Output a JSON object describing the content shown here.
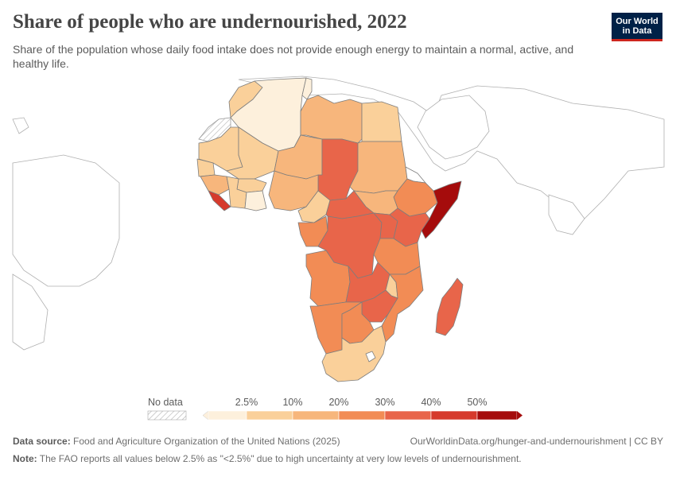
{
  "header": {
    "title": "Share of people who are undernourished, 2022",
    "subtitle": "Share of the population whose daily food intake does not provide enough energy to maintain a normal, active, and healthy life.",
    "logo_line1": "Our World",
    "logo_line2": "in Data"
  },
  "legend": {
    "no_data_label": "No data",
    "bins": [
      {
        "color": "#fdf0dc"
      },
      {
        "color": "#fad09a",
        "label": "2.5%"
      },
      {
        "color": "#f7b67c",
        "label": "10%"
      },
      {
        "color": "#f28c55",
        "label": "20%"
      },
      {
        "color": "#e8654a",
        "label": "30%"
      },
      {
        "color": "#d63a2c",
        "label": "40%"
      },
      {
        "color": "#a50c0c",
        "label": "50%"
      }
    ]
  },
  "footer": {
    "source_label": "Data source:",
    "source_text": "Food and Agriculture Organization of the United Nations (2025)",
    "url": "OurWorldinData.org/hunger-and-undernourishment | CC BY",
    "note_label": "Note:",
    "note_text": "The FAO reports all values below 2.5% as \"<2.5%\" due to high uncertainty at very low levels of undernourishment."
  },
  "colors": {
    "outline": "#9a9a9a",
    "country_border": "#7a7a7a",
    "no_data_land": "#ffffff"
  }
}
